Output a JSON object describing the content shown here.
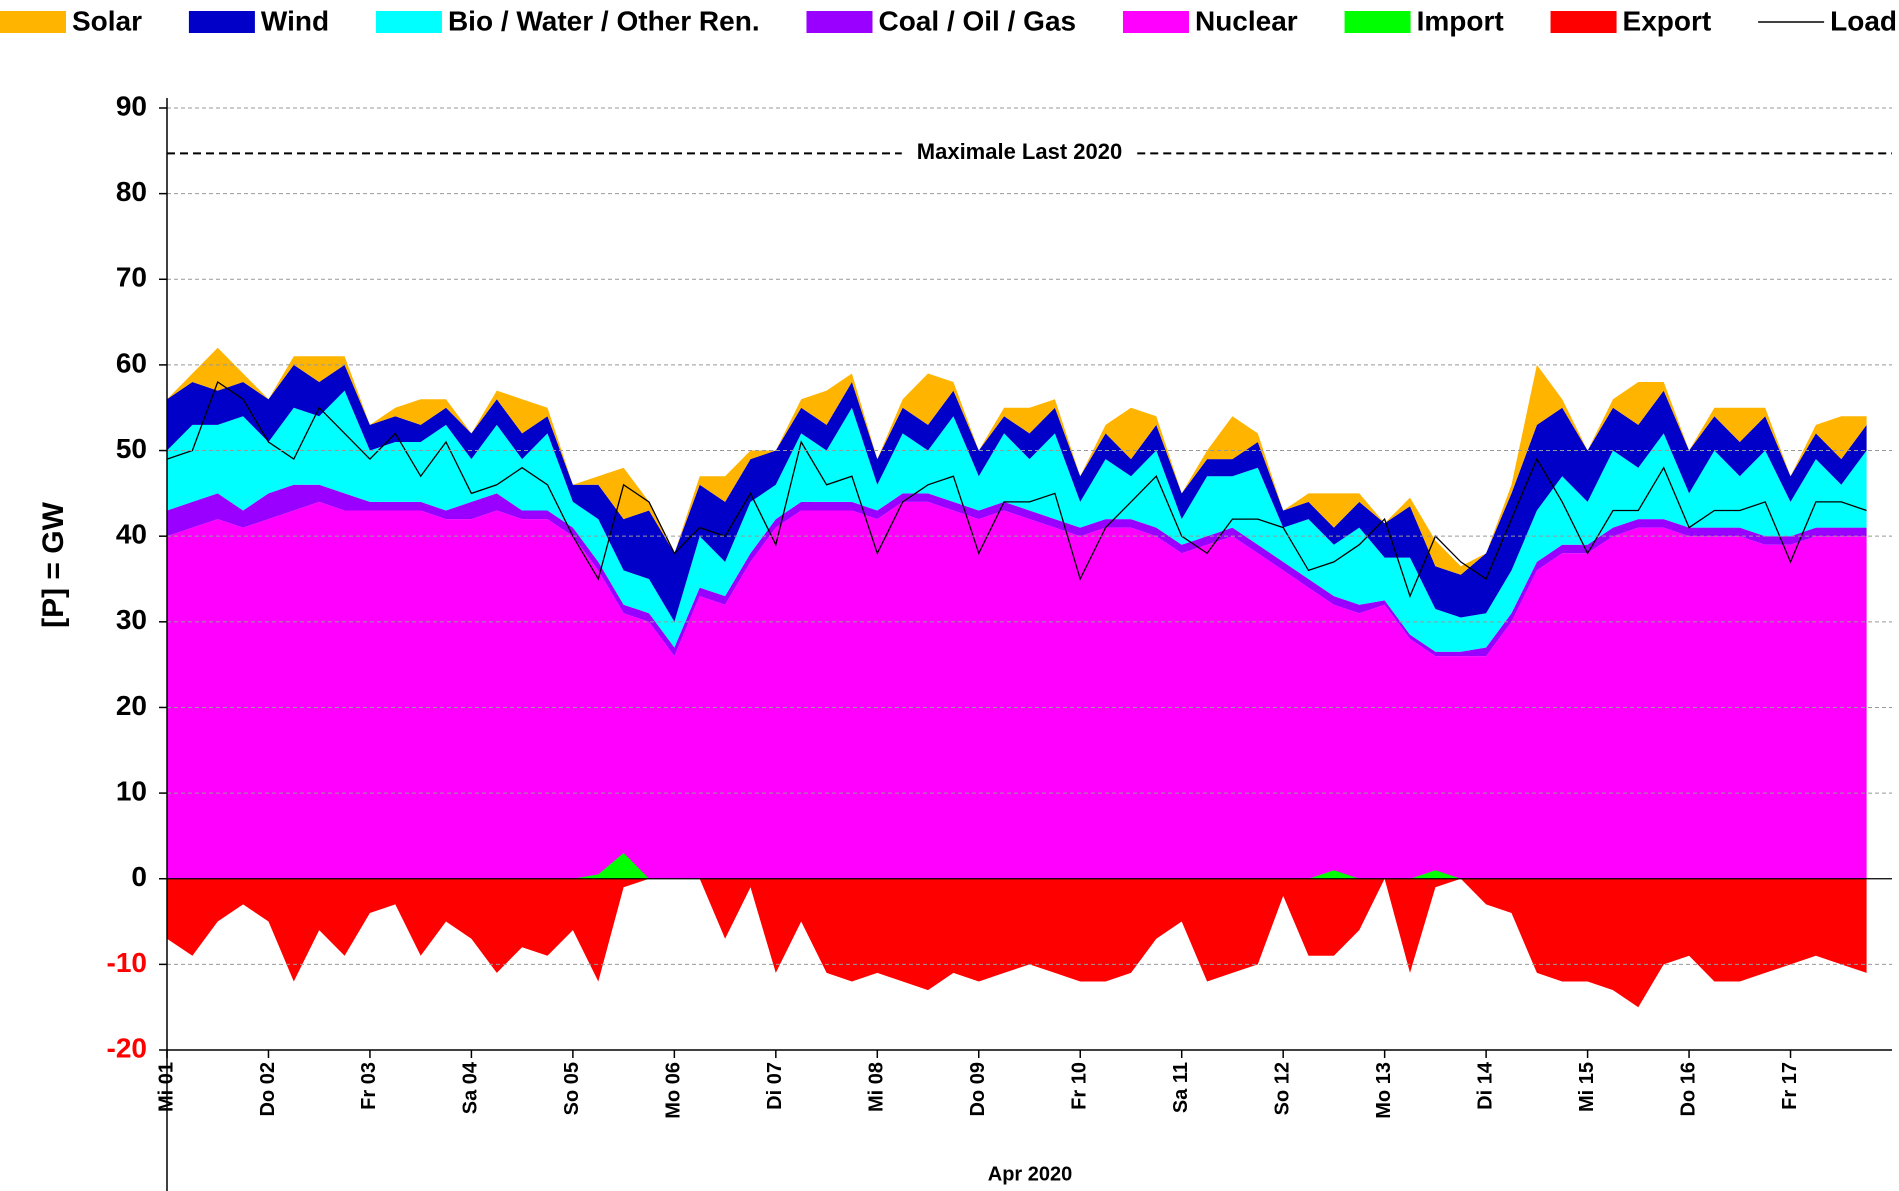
{
  "chart_data": {
    "type": "area",
    "stacked": true,
    "y_label": "[P] = GW",
    "x_label": "Apr 2020",
    "grid": true,
    "legend": "top",
    "ylim": [
      -20,
      90
    ],
    "yticks": [
      -20,
      -10,
      0,
      10,
      20,
      30,
      40,
      50,
      60,
      70,
      80,
      90
    ],
    "xlim": [
      0,
      17
    ],
    "xticks": [
      {
        "value": 0,
        "label": "Mi 01"
      },
      {
        "value": 1,
        "label": "Do 02"
      },
      {
        "value": 2,
        "label": "Fr 03"
      },
      {
        "value": 3,
        "label": "Sa 04"
      },
      {
        "value": 4,
        "label": "So 05"
      },
      {
        "value": 5,
        "label": "Mo 06"
      },
      {
        "value": 6,
        "label": "Di 07"
      },
      {
        "value": 7,
        "label": "Mi 08"
      },
      {
        "value": 8,
        "label": "Do 09"
      },
      {
        "value": 9,
        "label": "Fr 10"
      },
      {
        "value": 10,
        "label": "Sa 11"
      },
      {
        "value": 11,
        "label": "So 12"
      },
      {
        "value": 12,
        "label": "Mo 13"
      },
      {
        "value": 13,
        "label": "Di 14"
      },
      {
        "value": 14,
        "label": "Mi 15"
      },
      {
        "value": 15,
        "label": "Do 16"
      },
      {
        "value": 16,
        "label": "Fr 17"
      }
    ],
    "reference_line": {
      "value": 84.7,
      "label": "Maximale Last 2020"
    },
    "x": [
      0,
      0.25,
      0.5,
      0.75,
      1,
      1.25,
      1.5,
      1.75,
      2,
      2.25,
      2.5,
      2.75,
      3,
      3.25,
      3.5,
      3.75,
      4,
      4.25,
      4.5,
      4.75,
      5,
      5.25,
      5.5,
      5.75,
      6,
      6.25,
      6.5,
      6.75,
      7,
      7.25,
      7.5,
      7.75,
      8,
      8.25,
      8.5,
      8.75,
      9,
      9.25,
      9.5,
      9.75,
      10,
      10.25,
      10.5,
      10.75,
      11,
      11.25,
      11.5,
      11.75,
      12,
      12.25,
      12.5,
      12.75,
      13,
      13.25,
      13.5,
      13.75,
      14,
      14.25,
      14.5,
      14.75,
      15,
      15.25,
      15.5,
      15.75,
      16,
      16.25,
      16.5,
      16.75
    ],
    "series": [
      {
        "name": "Solar",
        "color": "#ffb400",
        "type": "area",
        "stacked": true,
        "values": [
          0,
          1,
          5,
          1,
          0,
          1,
          3,
          1,
          0,
          1,
          3,
          1,
          0,
          1,
          4,
          1,
          0,
          1,
          6,
          1,
          0,
          1,
          3,
          1,
          0,
          1,
          4,
          1,
          0,
          1,
          6,
          1,
          0,
          1,
          3,
          1,
          0,
          1,
          6,
          1,
          0,
          1,
          5,
          1,
          0,
          1,
          4,
          1,
          0,
          1,
          3,
          1,
          0,
          1,
          7,
          1,
          0,
          1,
          5,
          1,
          0,
          1,
          4,
          1,
          0,
          1,
          5,
          1
        ]
      },
      {
        "name": "Wind",
        "color": "#0000c8",
        "type": "area",
        "stacked": true,
        "values": [
          6,
          5,
          4,
          4,
          5,
          5,
          4,
          3,
          3,
          3,
          2,
          2,
          3,
          3,
          3,
          2,
          2,
          4,
          6,
          8,
          8,
          6,
          7,
          5,
          4,
          3,
          3,
          3,
          3,
          3,
          3,
          3,
          3,
          2,
          3,
          3,
          3,
          3,
          2,
          3,
          3,
          2,
          2,
          3,
          2,
          2,
          2,
          3,
          4,
          6,
          5,
          5,
          7,
          9,
          10,
          8,
          6,
          5,
          5,
          5,
          5,
          4,
          4,
          4,
          3,
          3,
          3,
          3
        ]
      },
      {
        "name": "Bio / Water / Other Ren.",
        "color": "#00ffff",
        "type": "area",
        "stacked": true,
        "values": [
          7,
          9,
          8,
          11,
          6,
          9,
          8,
          12,
          6,
          7,
          7,
          10,
          5,
          8,
          6,
          9,
          3,
          5,
          4,
          4,
          3,
          6,
          4,
          6,
          4,
          8,
          6,
          11,
          3,
          7,
          5,
          10,
          4,
          8,
          6,
          10,
          3,
          7,
          5,
          9,
          3,
          7,
          6,
          9,
          4,
          7,
          6,
          9,
          5,
          9,
          5,
          4,
          4,
          5,
          6,
          8,
          5,
          9,
          6,
          10,
          4,
          9,
          6,
          10,
          4,
          8,
          5,
          9
        ]
      },
      {
        "name": "Coal / Oil / Gas",
        "color": "#9900ff",
        "type": "area",
        "stacked": true,
        "values": [
          3,
          3,
          3,
          2,
          3,
          3,
          2,
          2,
          1,
          1,
          1,
          1,
          2,
          2,
          1,
          1,
          1,
          1,
          1,
          1,
          1,
          1,
          1,
          1,
          1,
          1,
          1,
          1,
          1,
          1,
          1,
          1,
          1,
          1,
          1,
          1,
          1,
          1,
          1,
          1,
          1,
          1,
          1,
          1,
          1,
          1,
          1,
          1,
          0.5,
          0.5,
          0.5,
          0.5,
          1,
          1,
          1,
          1,
          1,
          1,
          1,
          1,
          1,
          1,
          1,
          1,
          1,
          1,
          1,
          1
        ]
      },
      {
        "name": "Nuclear",
        "color": "#ff00ff",
        "type": "area",
        "stacked": true,
        "values": [
          40,
          41,
          42,
          41,
          42,
          43,
          44,
          43,
          43,
          43,
          43,
          42,
          42,
          43,
          42,
          42,
          40,
          36,
          31,
          30,
          26,
          33,
          32,
          37,
          41,
          43,
          43,
          43,
          42,
          44,
          44,
          43,
          42,
          43,
          42,
          41,
          40,
          41,
          41,
          40,
          38,
          39,
          40,
          38,
          36,
          34,
          32,
          31,
          32,
          28,
          26,
          26,
          26,
          30,
          36,
          38,
          38,
          40,
          41,
          41,
          40,
          40,
          40,
          39,
          39,
          40,
          40,
          40
        ]
      },
      {
        "name": "Import",
        "color": "#00ff00",
        "type": "area",
        "stacked": false,
        "values": [
          0,
          0,
          0,
          0,
          0,
          0,
          0,
          0,
          0,
          0,
          0,
          0,
          0,
          0,
          0,
          0,
          0,
          0.5,
          3,
          0,
          0,
          0,
          0,
          0,
          0,
          0,
          0,
          0,
          0,
          0,
          0,
          0,
          0,
          0,
          0,
          0,
          0,
          0,
          0,
          0,
          0,
          0,
          0,
          0,
          0,
          0,
          1,
          0,
          0,
          0,
          1,
          0,
          0,
          0,
          0,
          0,
          0,
          0,
          0,
          0,
          0,
          0,
          0,
          0,
          0,
          0,
          0,
          0
        ]
      },
      {
        "name": "Export",
        "color": "#ff0000",
        "type": "area",
        "stacked": false,
        "values": [
          -7,
          -9,
          -5,
          -3,
          -5,
          -12,
          -6,
          -9,
          -4,
          -3,
          -9,
          -5,
          -7,
          -11,
          -8,
          -9,
          -6,
          -12,
          -1,
          0,
          0,
          0,
          -7,
          -1,
          -11,
          -5,
          -11,
          -12,
          -11,
          -12,
          -13,
          -11,
          -12,
          -11,
          -10,
          -11,
          -12,
          -12,
          -11,
          -7,
          -5,
          -12,
          -11,
          -10,
          -2,
          -9,
          -9,
          -6,
          0,
          -11,
          -1,
          0,
          -3,
          -4,
          -11,
          -12,
          -12,
          -13,
          -15,
          -10,
          -9,
          -12,
          -12,
          -11,
          -10,
          -9,
          -10,
          -11
        ]
      },
      {
        "name": "Load",
        "color": "#000000",
        "type": "line",
        "stacked": false,
        "values": [
          49,
          50,
          58,
          56,
          51,
          49,
          55,
          52,
          49,
          52,
          47,
          51,
          45,
          46,
          48,
          46,
          40,
          35,
          46,
          44,
          38,
          41,
          40,
          45,
          39,
          51,
          46,
          47,
          38,
          44,
          46,
          47,
          38,
          44,
          44,
          45,
          35,
          41,
          44,
          47,
          40,
          38,
          42,
          42,
          41,
          36,
          37,
          39,
          42,
          33,
          40,
          37,
          35,
          42,
          49,
          44,
          38,
          43,
          43,
          48,
          41,
          43,
          43,
          44,
          37,
          44,
          44,
          43
        ]
      }
    ]
  }
}
